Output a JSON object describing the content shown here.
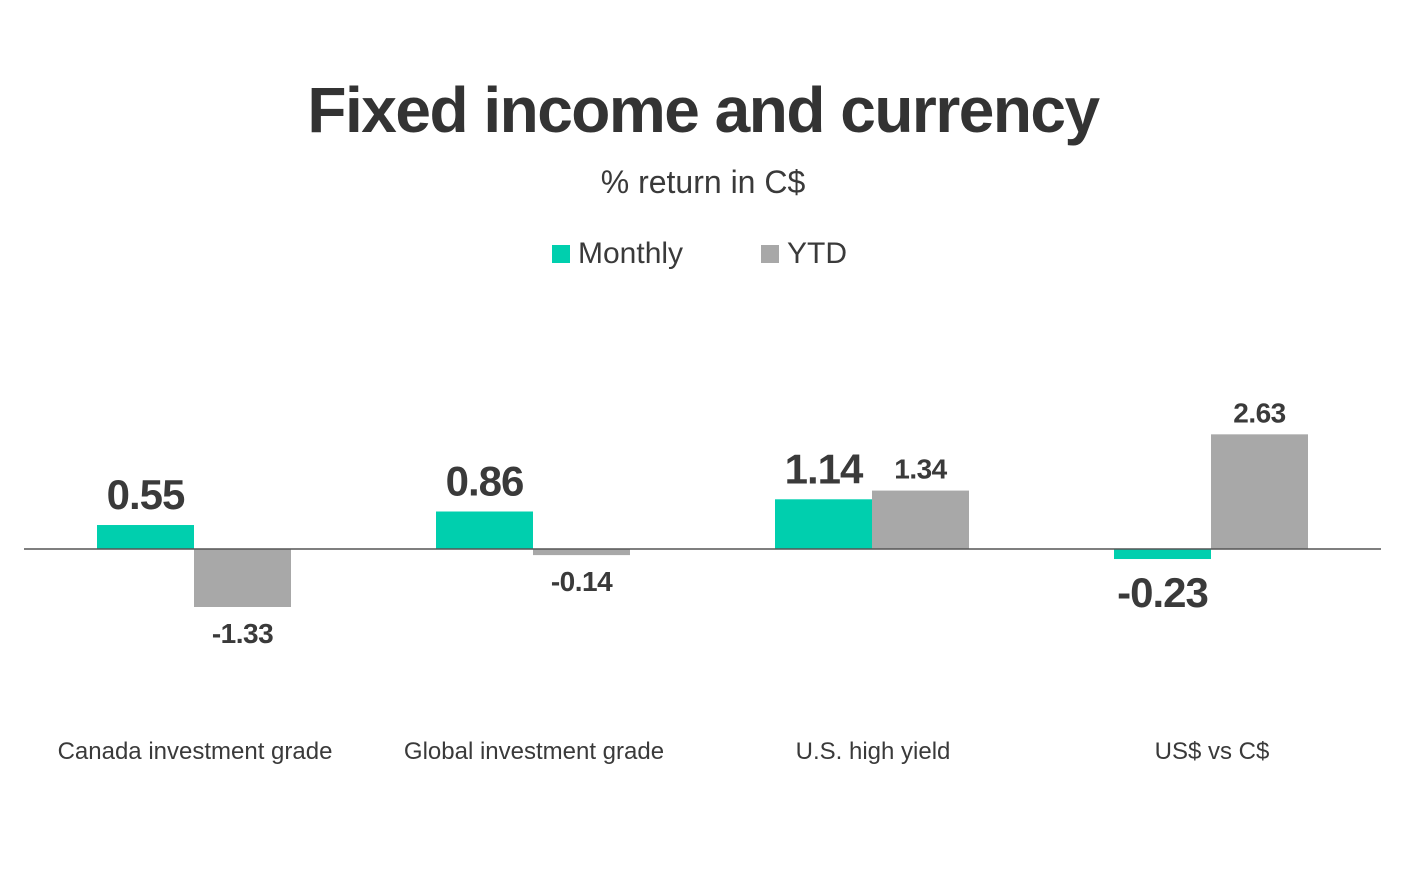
{
  "chart_data": {
    "type": "bar",
    "title": "Fixed income and currency",
    "subtitle": "% return in C$",
    "categories": [
      "Canada investment grade",
      "Global investment grade",
      "U.S. high yield",
      "US$ vs C$"
    ],
    "series": [
      {
        "name": "Monthly",
        "color": "#00cfae",
        "values": [
          0.55,
          0.86,
          1.14,
          -0.23
        ]
      },
      {
        "name": "YTD",
        "color": "#a8a8a8",
        "values": [
          -1.33,
          -0.14,
          1.34,
          2.63
        ]
      }
    ],
    "data_labels": {
      "Monthly": [
        "0.55",
        "0.86",
        "1.14",
        "-0.23"
      ],
      "YTD": [
        "-1.33",
        "-0.14",
        "1.34",
        "2.63"
      ]
    },
    "ylim": [
      -2.5,
      3.5
    ],
    "xlabel": "",
    "ylabel": "",
    "grid": false,
    "legend_position": "top-center",
    "baseline_color": "#555555",
    "label_color": "#3a3a3a"
  }
}
